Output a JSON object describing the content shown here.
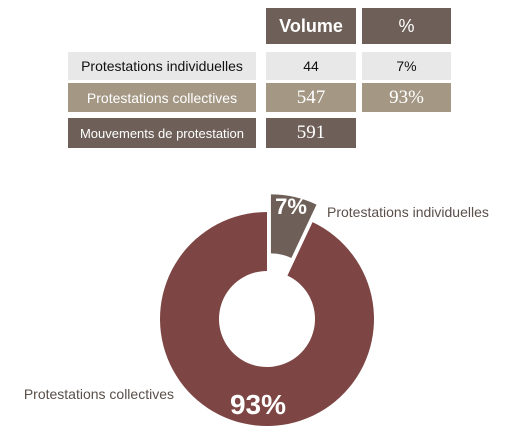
{
  "table": {
    "headers": {
      "volume": "Volume",
      "percent": "%"
    },
    "rows": [
      {
        "label": "Protestations individuelles",
        "volume": "44",
        "percent": "7%"
      },
      {
        "label": "Protestations collectives",
        "volume": "547",
        "percent": "93%"
      },
      {
        "label": "Mouvements de protestation",
        "volume": "591"
      }
    ]
  },
  "chart_data": {
    "type": "pie",
    "variant": "donut",
    "slices": [
      {
        "name": "Protestations individuelles",
        "value": 7,
        "label": "7%",
        "color": "#6e6058",
        "exploded": true
      },
      {
        "name": "Protestations collectives",
        "value": 93,
        "label": "93%",
        "color": "#7d4644"
      }
    ],
    "legend": "none"
  },
  "colors": {
    "header": "#6e6058",
    "row_light": "#e8e8e8",
    "row_taupe": "#a49885",
    "row_dark": "#6e6058"
  }
}
